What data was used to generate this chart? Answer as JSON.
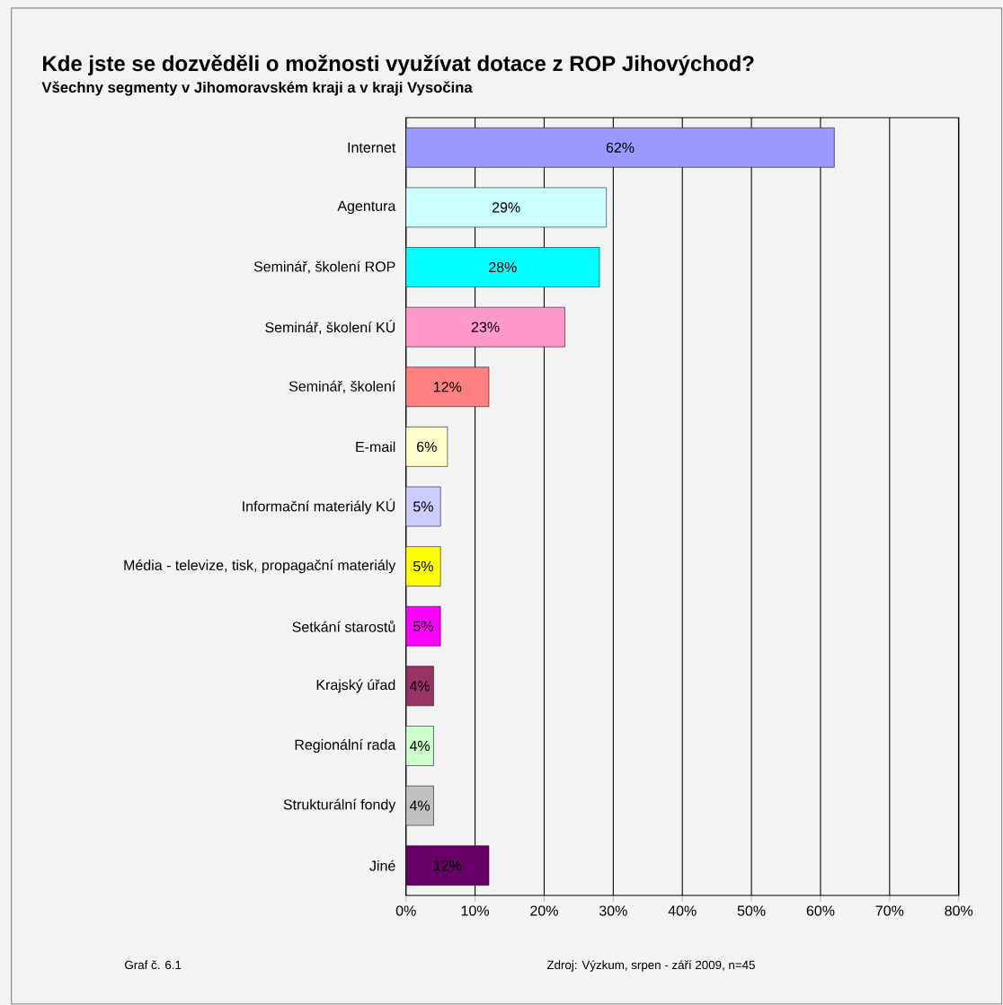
{
  "chart_data": {
    "type": "bar",
    "orientation": "horizontal",
    "title": "Kde jste se dozvěděli o možnosti využívat dotace z ROP Jihovýchod?",
    "subtitle": "Všechny segmenty v Jihomoravském kraji a v kraji Vysočina",
    "categories": [
      "Internet",
      "Agentura",
      "Seminář, školení ROP",
      "Seminář, školení KÚ",
      "Seminář, školení",
      "E-mail",
      "Informační materiály KÚ",
      "Média - televize, tisk, propagační materiály",
      "Setkání starostů",
      "Krajský úřad",
      "Regionální rada",
      "Strukturální fondy",
      "Jiné"
    ],
    "values": [
      62,
      29,
      28,
      23,
      12,
      6,
      5,
      5,
      5,
      4,
      4,
      4,
      12
    ],
    "value_labels": [
      "62%",
      "29%",
      "28%",
      "23%",
      "12%",
      "6%",
      "5%",
      "5%",
      "5%",
      "4%",
      "4%",
      "4%",
      "12%"
    ],
    "colors": [
      "#9999ff",
      "#ccffff",
      "#00ffff",
      "#ff99cc",
      "#ff8080",
      "#ffffcc",
      "#ccccff",
      "#ffff00",
      "#ff00ff",
      "#993366",
      "#ccffcc",
      "#c0c0c0",
      "#660066"
    ],
    "xlim": [
      0,
      80
    ],
    "xticks": [
      {
        "value": 0,
        "label": "0%"
      },
      {
        "value": 10,
        "label": "10%"
      },
      {
        "value": 20,
        "label": "20%"
      },
      {
        "value": 30,
        "label": "30%"
      },
      {
        "value": 40,
        "label": "40%"
      },
      {
        "value": 50,
        "label": "50%"
      },
      {
        "value": 60,
        "label": "60%"
      },
      {
        "value": 70,
        "label": "70%"
      },
      {
        "value": 80,
        "label": "80%"
      }
    ],
    "grid": "x",
    "annotations": [
      "Graf č. 6.1",
      "Zdroj: Výzkum, srpen - září 2009, n=45"
    ]
  }
}
